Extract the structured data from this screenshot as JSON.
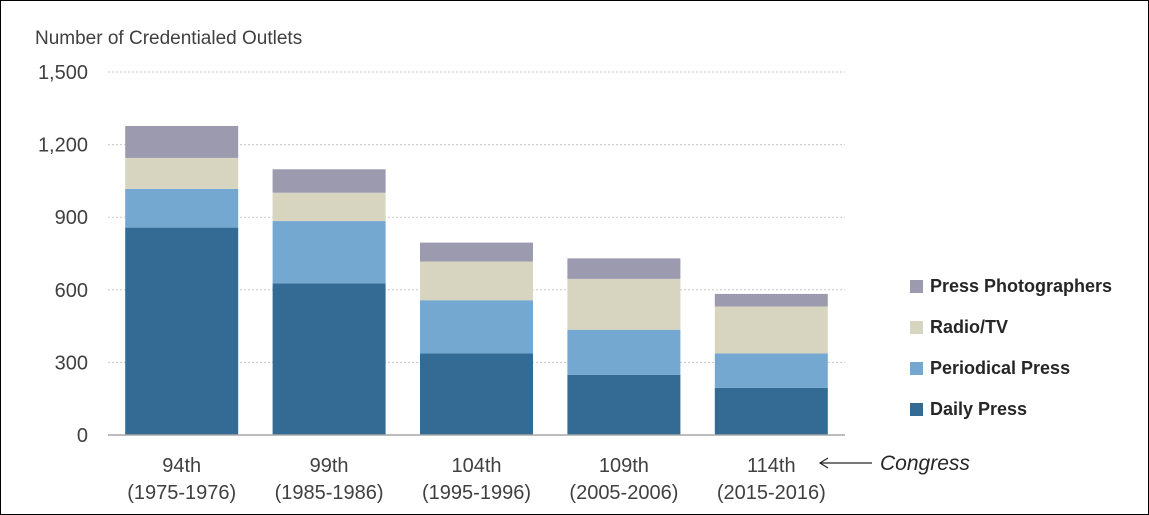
{
  "chart_data": {
    "type": "bar",
    "stacked": true,
    "ylabel": "Number of Credentialed Outlets",
    "ylim": [
      0,
      1500
    ],
    "yticks": [
      "0",
      "300",
      "600",
      "900",
      "1,200",
      "1,500"
    ],
    "ytick_values": [
      0,
      300,
      600,
      900,
      1200,
      1500
    ],
    "grid": true,
    "categories": [
      [
        "94th",
        "(1975-1976)"
      ],
      [
        "99th",
        "(1985-1986)"
      ],
      [
        "104th",
        "(1995-1996)"
      ],
      [
        "109th",
        "(2005-2006)"
      ],
      [
        "114th",
        "(2015-2016)"
      ]
    ],
    "series": [
      {
        "name": "Daily Press",
        "color": "#336b94",
        "values": [
          857,
          627,
          337,
          248,
          195
        ]
      },
      {
        "name": "Periodical Press",
        "color": "#74a8d0",
        "values": [
          160,
          257,
          220,
          187,
          142
        ]
      },
      {
        "name": "Radio/TV",
        "color": "#d7d5c0",
        "values": [
          128,
          117,
          160,
          210,
          194
        ]
      },
      {
        "name": "Press Photographers",
        "color": "#9c9aaf",
        "values": [
          132,
          97,
          78,
          85,
          52
        ]
      }
    ],
    "legend_position": "right",
    "legend_order": [
      "Press Photographers",
      "Radio/TV",
      "Periodical Press",
      "Daily Press"
    ],
    "annotation": {
      "text": "Congress",
      "arrow": "left"
    }
  }
}
